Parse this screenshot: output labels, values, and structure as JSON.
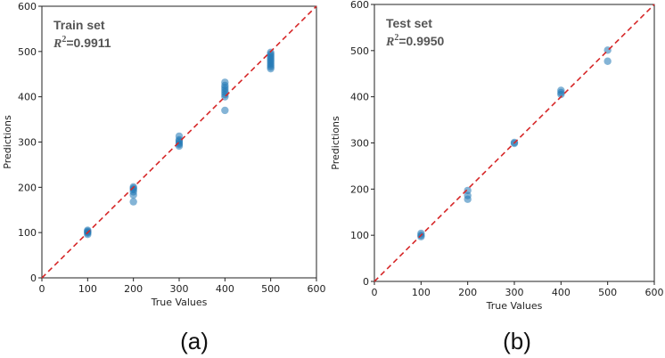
{
  "chart_data": [
    {
      "type": "scatter",
      "panel_label": "(a)",
      "title": "Train set",
      "r2_label": "R",
      "r2_exp": "2",
      "r2_value": "=0.9911",
      "xlabel": "True Values",
      "ylabel": "Predictions",
      "xlim": [
        0,
        600
      ],
      "ylim": [
        0,
        600
      ],
      "xticks": [
        0,
        100,
        200,
        300,
        400,
        500,
        600
      ],
      "yticks": [
        0,
        100,
        200,
        300,
        400,
        500,
        600
      ],
      "reference_line": {
        "type": "y=x",
        "color": "#d62728",
        "style": "dashed"
      },
      "point_color": "#1f77b4",
      "points": [
        {
          "x": 100,
          "y": 96
        },
        {
          "x": 100,
          "y": 99
        },
        {
          "x": 100,
          "y": 101
        },
        {
          "x": 100,
          "y": 103
        },
        {
          "x": 100,
          "y": 105
        },
        {
          "x": 200,
          "y": 168
        },
        {
          "x": 200,
          "y": 183
        },
        {
          "x": 200,
          "y": 190
        },
        {
          "x": 200,
          "y": 195
        },
        {
          "x": 200,
          "y": 198
        },
        {
          "x": 200,
          "y": 201
        },
        {
          "x": 300,
          "y": 291
        },
        {
          "x": 300,
          "y": 295
        },
        {
          "x": 300,
          "y": 298
        },
        {
          "x": 300,
          "y": 302
        },
        {
          "x": 300,
          "y": 305
        },
        {
          "x": 300,
          "y": 313
        },
        {
          "x": 400,
          "y": 370
        },
        {
          "x": 400,
          "y": 400
        },
        {
          "x": 400,
          "y": 405
        },
        {
          "x": 400,
          "y": 410
        },
        {
          "x": 400,
          "y": 415
        },
        {
          "x": 400,
          "y": 420
        },
        {
          "x": 400,
          "y": 425
        },
        {
          "x": 400,
          "y": 432
        },
        {
          "x": 500,
          "y": 462
        },
        {
          "x": 500,
          "y": 466
        },
        {
          "x": 500,
          "y": 470
        },
        {
          "x": 500,
          "y": 474
        },
        {
          "x": 500,
          "y": 478
        },
        {
          "x": 500,
          "y": 482
        },
        {
          "x": 500,
          "y": 486
        },
        {
          "x": 500,
          "y": 490
        },
        {
          "x": 500,
          "y": 494
        },
        {
          "x": 500,
          "y": 498
        }
      ]
    },
    {
      "type": "scatter",
      "panel_label": "(b)",
      "title": "Test set",
      "r2_label": "R",
      "r2_exp": "2",
      "r2_value": "=0.9950",
      "xlabel": "True Values",
      "ylabel": "Predictions",
      "xlim": [
        0,
        600
      ],
      "ylim": [
        0,
        600
      ],
      "xticks": [
        0,
        100,
        200,
        300,
        400,
        500,
        600
      ],
      "yticks": [
        0,
        100,
        200,
        300,
        400,
        500,
        600
      ],
      "reference_line": {
        "type": "y=x",
        "color": "#d62728",
        "style": "dashed"
      },
      "point_color": "#1f77b4",
      "points": [
        {
          "x": 100,
          "y": 97
        },
        {
          "x": 100,
          "y": 100
        },
        {
          "x": 100,
          "y": 104
        },
        {
          "x": 200,
          "y": 178
        },
        {
          "x": 200,
          "y": 186
        },
        {
          "x": 200,
          "y": 197
        },
        {
          "x": 300,
          "y": 299
        },
        {
          "x": 300,
          "y": 301
        },
        {
          "x": 400,
          "y": 405
        },
        {
          "x": 400,
          "y": 409
        },
        {
          "x": 400,
          "y": 414
        },
        {
          "x": 500,
          "y": 477
        },
        {
          "x": 500,
          "y": 501
        }
      ]
    }
  ]
}
